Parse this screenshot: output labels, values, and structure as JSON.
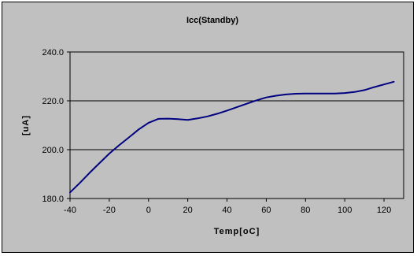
{
  "chart_data": {
    "type": "line",
    "title": "Icc(Standby)",
    "xlabel": "Temp[oC]",
    "ylabel": "[uA]",
    "xlim": [
      -40,
      130
    ],
    "ylim": [
      180,
      240
    ],
    "x_ticks": [
      -40,
      -20,
      0,
      20,
      40,
      60,
      80,
      100,
      120
    ],
    "x_tick_labels": [
      "-40",
      "-20",
      "0",
      "20",
      "40",
      "60",
      "80",
      "100",
      "120"
    ],
    "y_ticks": [
      180,
      200,
      220,
      240
    ],
    "y_tick_labels": [
      "180.0",
      "200.0",
      "220.0",
      "240.0"
    ],
    "grid": "horizontal",
    "series": [
      {
        "color": "#000080",
        "x": [
          -40,
          -35,
          -30,
          -25,
          -20,
          -15,
          -10,
          -5,
          0,
          5,
          10,
          15,
          20,
          25,
          30,
          35,
          40,
          45,
          50,
          55,
          60,
          65,
          70,
          75,
          80,
          85,
          90,
          95,
          100,
          105,
          110,
          115,
          120,
          125
        ],
        "y": [
          182.5,
          186.4,
          190.5,
          194.5,
          198.4,
          201.8,
          205.0,
          208.3,
          211.0,
          212.6,
          212.7,
          212.5,
          212.2,
          212.8,
          213.6,
          214.7,
          216.0,
          217.4,
          218.8,
          220.2,
          221.4,
          222.1,
          222.6,
          222.9,
          223.0,
          223.0,
          223.0,
          223.0,
          223.2,
          223.6,
          224.4,
          225.6,
          226.7,
          227.8
        ]
      }
    ],
    "colors": {
      "background": "#c0c0c0",
      "plot_area": "#c0c0c0",
      "grid": "#000000",
      "line": "#000080"
    }
  }
}
